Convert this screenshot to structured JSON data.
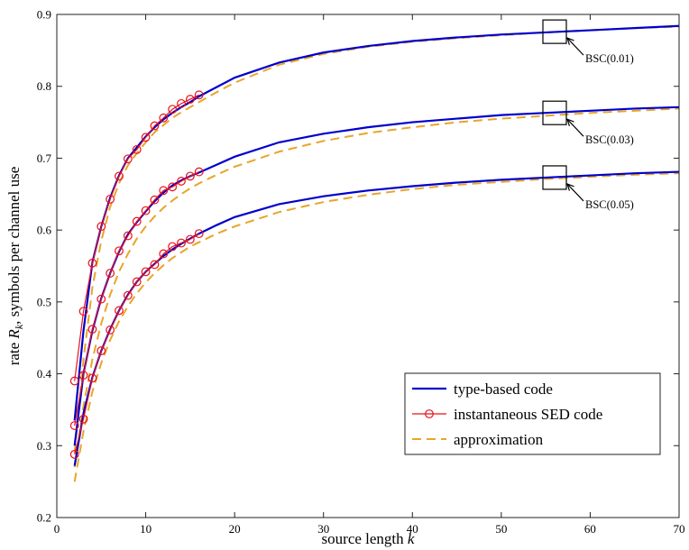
{
  "chart_data": {
    "type": "line",
    "xlabel": "source length k",
    "ylabel": "rate R_k, symbols per channel use",
    "xlim": [
      0,
      70
    ],
    "ylim": [
      0.2,
      0.9
    ],
    "xticks": [
      0,
      10,
      20,
      30,
      40,
      50,
      60,
      70
    ],
    "yticks": [
      0.2,
      0.3,
      0.4,
      0.5,
      0.6,
      0.7,
      0.8,
      0.9
    ],
    "grid": false,
    "legend_position": "bottom-right",
    "colors": {
      "type_based": "#0000cc",
      "sed": "#e8101a",
      "approximation": "#e8a52a"
    },
    "legend": [
      {
        "key": "type_based",
        "label": "type-based code",
        "style": "solid"
      },
      {
        "key": "sed",
        "label": "instantaneous SED code",
        "style": "solid-circle"
      },
      {
        "key": "approximation",
        "label": "approximation",
        "style": "dashed"
      }
    ],
    "groups": [
      {
        "annotation": "BSC(0.01)",
        "box_center": [
          56,
          0.876
        ],
        "type_based": {
          "x": [
            2,
            3,
            4,
            5,
            6,
            7,
            8,
            9,
            10,
            11,
            12,
            13,
            14,
            15,
            16,
            18,
            20,
            25,
            30,
            35,
            40,
            45,
            50,
            55,
            60,
            65,
            70
          ],
          "y": [
            0.335,
            0.46,
            0.555,
            0.605,
            0.645,
            0.676,
            0.7,
            0.715,
            0.73,
            0.743,
            0.754,
            0.763,
            0.771,
            0.778,
            0.786,
            0.799,
            0.812,
            0.833,
            0.847,
            0.856,
            0.863,
            0.868,
            0.872,
            0.875,
            0.878,
            0.881,
            0.884
          ]
        },
        "sed": {
          "x": [
            2,
            3,
            4,
            5,
            6,
            7,
            8,
            9,
            10,
            11,
            12,
            13,
            14,
            15,
            16
          ],
          "y": [
            0.39,
            0.487,
            0.554,
            0.605,
            0.643,
            0.675,
            0.699,
            0.712,
            0.729,
            0.745,
            0.756,
            0.768,
            0.776,
            0.782,
            0.788
          ]
        },
        "approximation": {
          "x": [
            2,
            3,
            4,
            5,
            6,
            7,
            8,
            9,
            10,
            11,
            12,
            13,
            14,
            15,
            16,
            18,
            20,
            25,
            30,
            35,
            40,
            45,
            50,
            55,
            60,
            65,
            70
          ],
          "y": [
            0.29,
            0.42,
            0.52,
            0.585,
            0.632,
            0.665,
            0.69,
            0.707,
            0.722,
            0.736,
            0.746,
            0.756,
            0.764,
            0.771,
            0.778,
            0.792,
            0.805,
            0.83,
            0.845,
            0.855,
            0.862,
            0.867,
            0.871,
            0.875,
            0.878,
            0.881,
            0.883
          ]
        }
      },
      {
        "annotation": "BSC(0.03)",
        "box_center": [
          56,
          0.763
        ],
        "type_based": {
          "x": [
            2,
            3,
            4,
            5,
            6,
            7,
            8,
            9,
            10,
            11,
            12,
            13,
            14,
            15,
            16,
            18,
            20,
            25,
            30,
            35,
            40,
            45,
            50,
            55,
            60,
            65,
            70
          ],
          "y": [
            0.3,
            0.4,
            0.46,
            0.505,
            0.54,
            0.57,
            0.594,
            0.611,
            0.626,
            0.64,
            0.652,
            0.662,
            0.669,
            0.675,
            0.68,
            0.691,
            0.702,
            0.722,
            0.734,
            0.743,
            0.75,
            0.755,
            0.76,
            0.763,
            0.766,
            0.769,
            0.771
          ]
        },
        "sed": {
          "x": [
            2,
            3,
            4,
            5,
            6,
            7,
            8,
            9,
            10,
            11,
            12,
            13,
            14,
            15,
            16
          ],
          "y": [
            0.328,
            0.398,
            0.462,
            0.504,
            0.54,
            0.571,
            0.592,
            0.612,
            0.627,
            0.642,
            0.655,
            0.66,
            0.668,
            0.675,
            0.681
          ]
        },
        "approximation": {
          "x": [
            2,
            3,
            4,
            5,
            6,
            7,
            8,
            9,
            10,
            11,
            12,
            13,
            14,
            15,
            16,
            18,
            20,
            25,
            30,
            35,
            40,
            45,
            50,
            55,
            60,
            65,
            70
          ],
          "y": [
            0.27,
            0.355,
            0.42,
            0.47,
            0.51,
            0.542,
            0.567,
            0.588,
            0.605,
            0.619,
            0.631,
            0.641,
            0.65,
            0.658,
            0.665,
            0.677,
            0.688,
            0.709,
            0.724,
            0.735,
            0.743,
            0.75,
            0.755,
            0.759,
            0.763,
            0.766,
            0.769
          ]
        }
      },
      {
        "annotation": "BSC(0.05)",
        "box_center": [
          56,
          0.673
        ],
        "type_based": {
          "x": [
            2,
            3,
            4,
            5,
            6,
            7,
            8,
            9,
            10,
            11,
            12,
            13,
            14,
            15,
            16,
            18,
            20,
            25,
            30,
            35,
            40,
            45,
            50,
            55,
            60,
            65,
            70
          ],
          "y": [
            0.272,
            0.345,
            0.395,
            0.432,
            0.462,
            0.488,
            0.51,
            0.528,
            0.542,
            0.553,
            0.564,
            0.573,
            0.581,
            0.588,
            0.595,
            0.607,
            0.618,
            0.636,
            0.647,
            0.655,
            0.661,
            0.666,
            0.67,
            0.673,
            0.676,
            0.679,
            0.681
          ]
        },
        "sed": {
          "x": [
            2,
            3,
            4,
            5,
            6,
            7,
            8,
            9,
            10,
            11,
            12,
            13,
            14,
            15,
            16
          ],
          "y": [
            0.288,
            0.337,
            0.394,
            0.432,
            0.461,
            0.488,
            0.509,
            0.528,
            0.542,
            0.552,
            0.567,
            0.577,
            0.582,
            0.587,
            0.595
          ]
        },
        "approximation": {
          "x": [
            2,
            3,
            4,
            5,
            6,
            7,
            8,
            9,
            10,
            11,
            12,
            13,
            14,
            15,
            16,
            18,
            20,
            25,
            30,
            35,
            40,
            45,
            50,
            55,
            60,
            65,
            70
          ],
          "y": [
            0.25,
            0.32,
            0.375,
            0.415,
            0.447,
            0.473,
            0.494,
            0.512,
            0.527,
            0.54,
            0.551,
            0.561,
            0.569,
            0.577,
            0.583,
            0.595,
            0.605,
            0.625,
            0.639,
            0.649,
            0.657,
            0.663,
            0.667,
            0.671,
            0.674,
            0.677,
            0.679
          ]
        }
      }
    ]
  }
}
